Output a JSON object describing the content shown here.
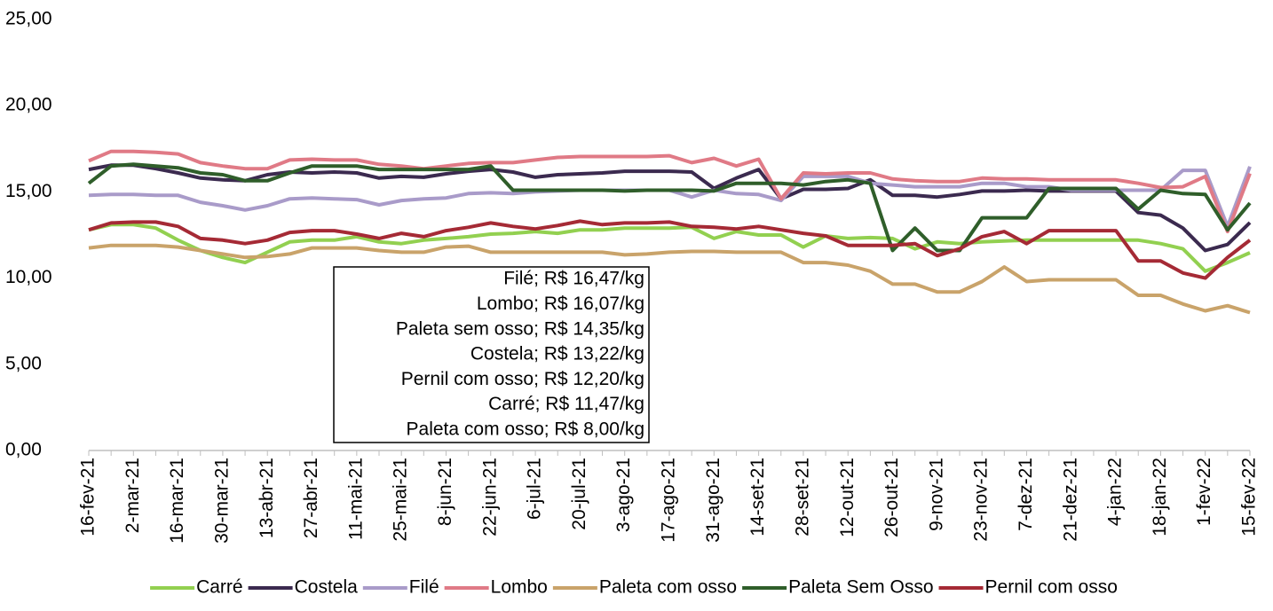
{
  "chart_data": {
    "type": "line",
    "categories": [
      "16-fev-21",
      null,
      "2-mar-21",
      null,
      "16-mar-21",
      null,
      "30-mar-21",
      null,
      "13-abr-21",
      null,
      "27-abr-21",
      null,
      "11-mai-21",
      null,
      "25-mai-21",
      null,
      "8-jun-21",
      null,
      "22-jun-21",
      null,
      "6-jul-21",
      null,
      "20-jul-21",
      null,
      "3-ago-21",
      null,
      "17-ago-21",
      null,
      "31-ago-21",
      null,
      "14-set-21",
      null,
      "28-set-21",
      null,
      "12-out-21",
      null,
      "26-out-21",
      null,
      "9-nov-21",
      null,
      "23-nov-21",
      null,
      "7-dez-21",
      null,
      "21-dez-21",
      null,
      "4-jan-22",
      null,
      "18-jan-22",
      null,
      "1-fev-22",
      null,
      "15-fev-22"
    ],
    "ylim": [
      0,
      25
    ],
    "yticks": [
      {
        "value": 0,
        "label": "0,00"
      },
      {
        "value": 5,
        "label": "5,00"
      },
      {
        "value": 10,
        "label": "10,00"
      },
      {
        "value": 15,
        "label": "15,00"
      },
      {
        "value": 20,
        "label": "20,00"
      },
      {
        "value": 25,
        "label": "25,00"
      }
    ],
    "legend": "bottom",
    "annotation": [
      "Filé; R$ 16,47/kg",
      "Lombo; R$ 16,07/kg",
      "Paleta sem osso; R$ 14,35/kg",
      "Costela; R$ 13,22/kg",
      "Pernil com osso; R$ 12,20/kg",
      "Carré; R$ 11,47/kg",
      "Paleta com osso; R$ 8,00/kg"
    ],
    "series": [
      {
        "name": "Carré",
        "color": "#92d050",
        "values": [
          12.8,
          13.1,
          13.1,
          12.9,
          12.2,
          11.6,
          11.2,
          10.9,
          11.5,
          12.1,
          12.2,
          12.2,
          12.4,
          12.1,
          12.0,
          12.2,
          12.3,
          12.4,
          12.55,
          12.6,
          12.7,
          12.6,
          12.8,
          12.8,
          12.9,
          12.9,
          12.9,
          12.95,
          12.3,
          12.7,
          12.5,
          12.5,
          11.8,
          12.45,
          12.3,
          12.35,
          12.3,
          11.7,
          12.1,
          12.0,
          12.1,
          12.15,
          12.2,
          12.2,
          12.2,
          12.2,
          12.2,
          12.2,
          12.0,
          11.7,
          10.4,
          10.9,
          11.47
        ]
      },
      {
        "name": "Costela",
        "color": "#3b2a4f",
        "values": [
          16.3,
          16.55,
          16.55,
          16.35,
          16.1,
          15.8,
          15.7,
          15.65,
          16.0,
          16.15,
          16.1,
          16.15,
          16.1,
          15.8,
          15.9,
          15.85,
          16.05,
          16.2,
          16.3,
          16.15,
          15.85,
          16.0,
          16.05,
          16.1,
          16.2,
          16.2,
          16.2,
          16.15,
          15.2,
          15.8,
          16.3,
          14.6,
          15.15,
          15.15,
          15.2,
          15.7,
          14.8,
          14.8,
          14.7,
          14.85,
          15.05,
          15.05,
          15.1,
          15.05,
          15.05,
          15.05,
          15.05,
          13.8,
          13.65,
          12.9,
          11.6,
          11.95,
          13.22
        ]
      },
      {
        "name": "Filé",
        "color": "#a99bc9",
        "values": [
          14.8,
          14.85,
          14.85,
          14.8,
          14.8,
          14.4,
          14.2,
          13.95,
          14.2,
          14.6,
          14.65,
          14.6,
          14.55,
          14.25,
          14.5,
          14.6,
          14.65,
          14.9,
          14.95,
          14.9,
          15.0,
          15.05,
          15.1,
          15.1,
          15.1,
          15.1,
          15.1,
          14.7,
          15.1,
          14.9,
          14.85,
          14.5,
          15.9,
          15.9,
          15.9,
          15.5,
          15.4,
          15.3,
          15.3,
          15.3,
          15.5,
          15.5,
          15.3,
          15.3,
          15.1,
          15.1,
          15.1,
          15.1,
          15.1,
          16.25,
          16.25,
          13.0,
          16.47
        ]
      },
      {
        "name": "Lombo",
        "color": "#e07a86",
        "values": [
          16.8,
          17.35,
          17.35,
          17.3,
          17.2,
          16.7,
          16.5,
          16.35,
          16.35,
          16.85,
          16.9,
          16.85,
          16.85,
          16.6,
          16.5,
          16.35,
          16.5,
          16.65,
          16.7,
          16.7,
          16.85,
          17.0,
          17.05,
          17.05,
          17.05,
          17.05,
          17.1,
          16.7,
          16.95,
          16.5,
          16.9,
          14.6,
          16.1,
          16.05,
          16.1,
          16.1,
          15.75,
          15.65,
          15.6,
          15.6,
          15.8,
          15.75,
          15.75,
          15.7,
          15.7,
          15.7,
          15.7,
          15.5,
          15.25,
          15.3,
          15.9,
          12.7,
          16.07
        ]
      },
      {
        "name": "Paleta com osso",
        "color": "#c9a36a",
        "values": [
          11.75,
          11.9,
          11.9,
          11.9,
          11.8,
          11.6,
          11.4,
          11.2,
          11.25,
          11.4,
          11.75,
          11.75,
          11.75,
          11.6,
          11.5,
          11.5,
          11.8,
          11.85,
          11.5,
          11.5,
          11.5,
          11.5,
          11.5,
          11.5,
          11.35,
          11.4,
          11.5,
          11.55,
          11.55,
          11.5,
          11.5,
          11.5,
          10.9,
          10.9,
          10.75,
          10.4,
          9.65,
          9.65,
          9.2,
          9.2,
          9.8,
          10.65,
          9.8,
          9.9,
          9.9,
          9.9,
          9.9,
          9.0,
          9.0,
          8.5,
          8.1,
          8.4,
          8.0
        ]
      },
      {
        "name": "Paleta Sem Osso",
        "color": "#2f5e2a",
        "values": [
          15.5,
          16.5,
          16.6,
          16.5,
          16.4,
          16.1,
          16.0,
          15.65,
          15.65,
          16.1,
          16.5,
          16.5,
          16.5,
          16.3,
          16.3,
          16.3,
          16.3,
          16.3,
          16.5,
          15.1,
          15.1,
          15.1,
          15.1,
          15.1,
          15.05,
          15.1,
          15.1,
          15.1,
          15.05,
          15.5,
          15.5,
          15.5,
          15.4,
          15.6,
          15.7,
          15.5,
          11.6,
          12.9,
          11.6,
          11.6,
          13.5,
          13.5,
          13.5,
          15.2,
          15.2,
          15.2,
          15.2,
          14.0,
          15.1,
          14.9,
          14.85,
          12.8,
          14.35
        ]
      },
      {
        "name": "Pernil com osso",
        "color": "#a52a35",
        "values": [
          12.8,
          13.2,
          13.25,
          13.25,
          13.0,
          12.3,
          12.2,
          12.0,
          12.2,
          12.65,
          12.75,
          12.75,
          12.55,
          12.3,
          12.6,
          12.4,
          12.75,
          12.95,
          13.2,
          13.0,
          12.85,
          13.05,
          13.3,
          13.1,
          13.2,
          13.2,
          13.25,
          13.0,
          12.95,
          12.85,
          13.0,
          12.8,
          12.6,
          12.45,
          11.9,
          11.9,
          11.9,
          12.0,
          11.3,
          11.7,
          12.4,
          12.7,
          12.0,
          12.75,
          12.75,
          12.75,
          12.75,
          11.0,
          11.0,
          10.3,
          10.0,
          11.2,
          12.2
        ]
      }
    ]
  }
}
